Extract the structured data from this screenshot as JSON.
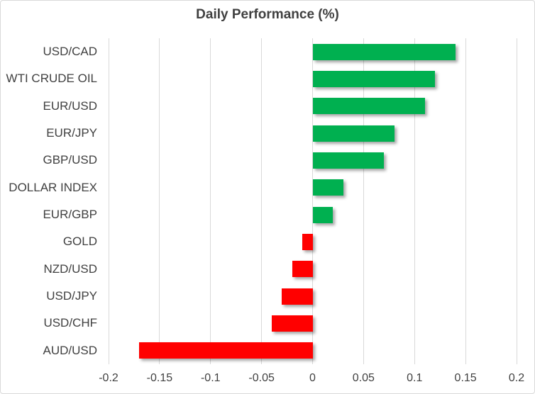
{
  "chart_data": {
    "type": "bar",
    "orientation": "horizontal",
    "title": "Daily Performance (%)",
    "categories": [
      "USD/CAD",
      "WTI CRUDE OIL",
      "EUR/USD",
      "EUR/JPY",
      "GBP/USD",
      "DOLLAR INDEX",
      "EUR/GBP",
      "GOLD",
      "NZD/USD",
      "USD/JPY",
      "USD/CHF",
      "AUD/USD"
    ],
    "values": [
      0.14,
      0.12,
      0.11,
      0.08,
      0.07,
      0.03,
      0.02,
      -0.01,
      -0.02,
      -0.03,
      -0.04,
      -0.17
    ],
    "xlim": [
      -0.2,
      0.2
    ],
    "xticks": [
      -0.2,
      -0.15,
      -0.1,
      -0.05,
      0,
      0.05,
      0.1,
      0.15,
      0.2
    ],
    "xtick_labels": [
      "-0.2",
      "-0.15",
      "-0.1",
      "-0.05",
      "0",
      "0.05",
      "0.1",
      "0.15",
      "0.2"
    ],
    "grid": "vertical",
    "legend": "none",
    "xlabel": "",
    "ylabel": "",
    "colors": {
      "positive": "#00B050",
      "negative": "#FF0000",
      "gridline": "#D9D9D9",
      "text": "#404040",
      "title_text": "#404040",
      "background": "#FFFFFF",
      "border": "#D9D9D9"
    }
  }
}
